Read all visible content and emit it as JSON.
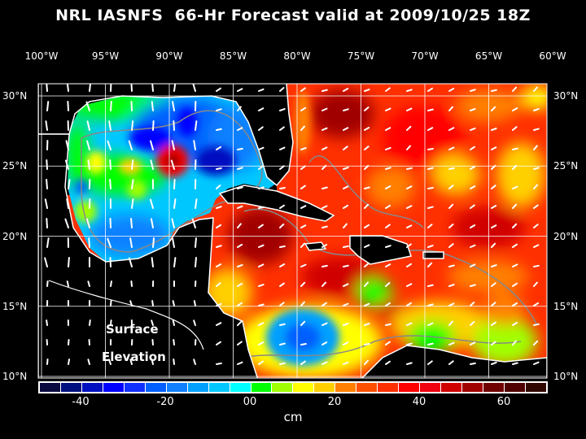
{
  "title": "NRL IASNFS  66-Hr Forecast valid at 2009/10/25 18Z",
  "lon_labels": [
    "100°W",
    "95°W",
    "90°W",
    "85°W",
    "80°W",
    "75°W",
    "70°W",
    "65°W",
    "60°W"
  ],
  "lat_labels": [
    "30°N",
    "25°N",
    "20°N",
    "15°N",
    "10°N"
  ],
  "annotation": {
    "line1": "Surface",
    "line2": "Elevation"
  },
  "colorbar": {
    "unit": "cm",
    "ticks": [
      "-40",
      "-20",
      "00",
      "20",
      "40",
      "60"
    ],
    "colors": [
      "#0a0a40",
      "#001080",
      "#0010c0",
      "#0000ff",
      "#1030ff",
      "#0060ff",
      "#1080ff",
      "#00a0ff",
      "#00c8ff",
      "#00ffff",
      "#00ff00",
      "#a0ff00",
      "#ffff00",
      "#ffd000",
      "#ff8000",
      "#ff5000",
      "#ff3000",
      "#ff0000",
      "#f00010",
      "#d00000",
      "#a00000",
      "#700000",
      "#500000",
      "#300800"
    ]
  }
}
